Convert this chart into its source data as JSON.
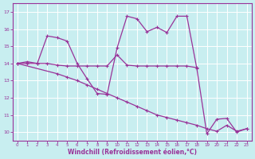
{
  "xlabel": "Windchill (Refroidissement éolien,°C)",
  "xlim": [
    -0.5,
    23.5
  ],
  "ylim": [
    9.5,
    17.5
  ],
  "xticks": [
    0,
    1,
    2,
    3,
    4,
    5,
    6,
    7,
    8,
    9,
    10,
    11,
    12,
    13,
    14,
    15,
    16,
    17,
    18,
    19,
    20,
    21,
    22,
    23
  ],
  "yticks": [
    10,
    11,
    12,
    13,
    14,
    15,
    16,
    17
  ],
  "background_color": "#c8eef0",
  "line_color": "#993399",
  "grid_color": "#b8dfe2",
  "series": [
    {
      "x": [
        0,
        1,
        2,
        3,
        4,
        5,
        6,
        7,
        8,
        9,
        10,
        11,
        12,
        13,
        14,
        15,
        16,
        17,
        18,
        19,
        20,
        21,
        22,
        23
      ],
      "y": [
        14.0,
        14.1,
        14.0,
        15.6,
        15.5,
        15.3,
        14.0,
        13.1,
        12.25,
        12.2,
        14.9,
        16.75,
        16.6,
        15.85,
        16.1,
        15.8,
        16.75,
        16.75,
        13.7,
        9.9,
        10.75,
        10.8,
        10.0,
        10.2
      ]
    },
    {
      "x": [
        0,
        1,
        2,
        3,
        4,
        5,
        6,
        7,
        8,
        9,
        10,
        11,
        12,
        13,
        14,
        15,
        16,
        17,
        18
      ],
      "y": [
        14.0,
        14.0,
        14.0,
        14.0,
        13.9,
        13.85,
        13.85,
        13.85,
        13.85,
        13.85,
        14.5,
        13.9,
        13.85,
        13.85,
        13.85,
        13.85,
        13.85,
        13.85,
        13.75
      ]
    },
    {
      "x": [
        0,
        4,
        5,
        6,
        7,
        8,
        9,
        10,
        11,
        12,
        13,
        14,
        15,
        16,
        17,
        18,
        19,
        20,
        21,
        22,
        23
      ],
      "y": [
        14.0,
        13.4,
        13.2,
        13.0,
        12.75,
        12.5,
        12.25,
        12.0,
        11.75,
        11.5,
        11.25,
        11.0,
        10.85,
        10.7,
        10.55,
        10.4,
        10.2,
        10.05,
        10.4,
        10.05,
        10.2
      ]
    }
  ]
}
